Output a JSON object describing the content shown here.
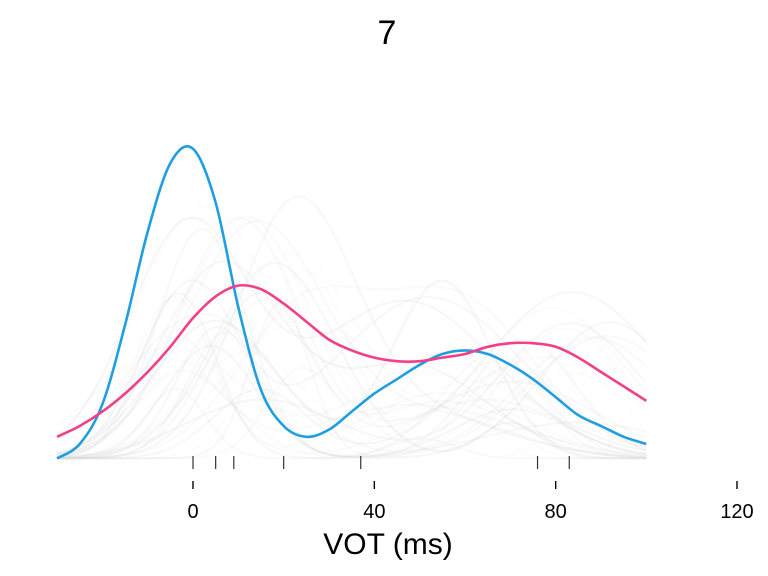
{
  "chart_data": {
    "type": "line",
    "title": "7",
    "xlabel": "VOT (ms)",
    "ylabel": "",
    "xlim": [
      -30,
      120
    ],
    "x_ticks": [
      0,
      40,
      80,
      120
    ],
    "x_tick_labels": [
      "0",
      "40",
      "80",
      "120"
    ],
    "grid": false,
    "legend": "none",
    "rug": [
      0,
      5,
      9,
      20,
      37,
      76,
      83
    ],
    "series": [
      {
        "role": "highlight-blue",
        "color": "#1f9ee0",
        "x": [
          -30,
          -25,
          -20,
          -15,
          -10,
          -5,
          0,
          5,
          10,
          15,
          20,
          25,
          30,
          35,
          40,
          45,
          50,
          55,
          60,
          65,
          70,
          75,
          80,
          85,
          90,
          95,
          100
        ],
        "y": [
          0.01,
          0.05,
          0.16,
          0.38,
          0.64,
          0.83,
          0.87,
          0.72,
          0.43,
          0.2,
          0.1,
          0.07,
          0.09,
          0.14,
          0.19,
          0.23,
          0.27,
          0.3,
          0.31,
          0.3,
          0.27,
          0.23,
          0.18,
          0.13,
          0.1,
          0.07,
          0.05
        ]
      },
      {
        "role": "highlight-pink",
        "color": "#f0408a",
        "x": [
          -30,
          -25,
          -20,
          -15,
          -10,
          -5,
          0,
          5,
          10,
          15,
          20,
          25,
          30,
          35,
          40,
          45,
          50,
          55,
          60,
          65,
          70,
          75,
          80,
          85,
          90,
          95,
          100
        ],
        "y": [
          0.07,
          0.1,
          0.14,
          0.19,
          0.25,
          0.32,
          0.4,
          0.46,
          0.49,
          0.48,
          0.44,
          0.39,
          0.34,
          0.31,
          0.29,
          0.28,
          0.28,
          0.29,
          0.3,
          0.32,
          0.33,
          0.33,
          0.32,
          0.29,
          0.25,
          0.21,
          0.17
        ]
      }
    ],
    "background_color": "#d8d8d8"
  }
}
